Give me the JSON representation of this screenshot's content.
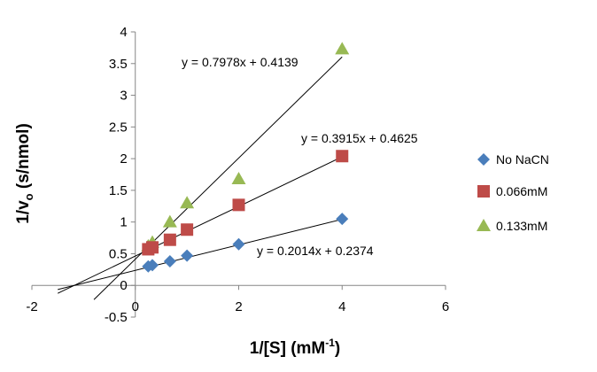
{
  "chart_data": {
    "type": "scatter",
    "title": "",
    "xlabel": {
      "main": "1/[S] (mM",
      "sup": "-1",
      "end": ")"
    },
    "ylabel": {
      "main": "1/v",
      "sub": "o",
      "end": " (s/nmol)"
    },
    "xlim": [
      -2,
      6
    ],
    "ylim": [
      -0.5,
      4
    ],
    "xticks": [
      -2,
      0,
      2,
      4,
      6
    ],
    "yticks": [
      -0.5,
      0,
      0.5,
      1,
      1.5,
      2,
      2.5,
      3,
      3.5,
      4
    ],
    "grid": false,
    "legend_position": "right",
    "series": [
      {
        "name": "No NaCN",
        "marker": "diamond",
        "color": "#4a7ebb",
        "x": [
          0.25,
          0.33,
          0.67,
          1,
          2,
          4
        ],
        "y": [
          0.3,
          0.32,
          0.38,
          0.47,
          0.65,
          1.05
        ],
        "trendline": {
          "slope": 0.2014,
          "intercept": 0.2374,
          "label": "y = 0.2014x + 0.2374",
          "x_range": [
            -1.5,
            4
          ]
        }
      },
      {
        "name": "0.066mM",
        "marker": "square",
        "color": "#be4b48",
        "x": [
          0.25,
          0.33,
          0.67,
          1,
          2,
          4
        ],
        "y": [
          0.57,
          0.6,
          0.72,
          0.88,
          1.27,
          2.04
        ],
        "trendline": {
          "slope": 0.3915,
          "intercept": 0.4625,
          "label": "y = 0.3915x + 0.4625",
          "x_range": [
            -1.5,
            4
          ]
        }
      },
      {
        "name": "0.133mM",
        "marker": "triangle",
        "color": "#98b954",
        "x": [
          0.25,
          0.33,
          0.67,
          1,
          2,
          4
        ],
        "y": [
          0.62,
          0.68,
          1.0,
          1.3,
          1.68,
          3.73
        ],
        "trendline": {
          "slope": 0.7978,
          "intercept": 0.4139,
          "label": "y = 0.7978x + 0.4139",
          "x_range": [
            -0.8,
            4
          ]
        }
      }
    ]
  }
}
